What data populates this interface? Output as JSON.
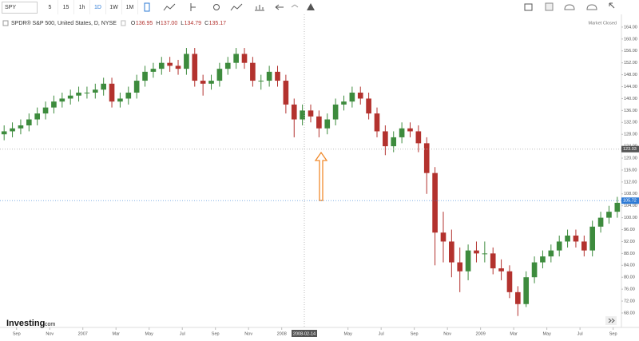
{
  "toolbar": {
    "symbol": "SPY",
    "intervals": [
      "5",
      "15",
      "1h",
      "1D",
      "1W",
      "1M"
    ],
    "active_interval": 3
  },
  "legend": {
    "title": "SPDR® S&P 500, United States, D, NYSE",
    "labels": [
      "O",
      "H",
      "L",
      "C"
    ],
    "values": [
      "136.95",
      "137.00",
      "134.79",
      "135.17"
    ]
  },
  "status": "Market Closed",
  "logo": {
    "name": "Investing",
    "suffix": ".com"
  },
  "chart_data": {
    "type": "candlestick",
    "categories": [
      null,
      null,
      "Sep",
      null,
      null,
      null,
      "Nov",
      null,
      null,
      null,
      "2007",
      null,
      null,
      null,
      "Mar",
      null,
      null,
      null,
      "May",
      null,
      null,
      null,
      "Jul",
      null,
      null,
      null,
      "Sep",
      null,
      null,
      null,
      "Nov",
      null,
      null,
      null,
      "2008",
      null,
      null,
      null,
      null,
      null,
      null,
      null,
      "May",
      null,
      null,
      null,
      "Jul",
      null,
      null,
      null,
      "Sep",
      null,
      null,
      null,
      "Nov",
      null,
      null,
      null,
      "2009",
      null,
      null,
      null,
      "Mar",
      null,
      null,
      null,
      "May",
      null,
      null,
      null,
      "Jul",
      null,
      null,
      null,
      "Sep"
    ],
    "open": [
      128,
      129,
      130,
      131,
      133,
      135,
      137,
      139,
      140,
      141,
      142,
      142,
      143,
      145,
      139,
      140,
      142,
      146,
      149,
      150,
      152,
      151,
      150,
      155,
      146,
      145,
      146,
      150,
      152,
      155,
      152,
      146,
      146,
      149,
      146,
      138,
      133,
      136,
      134,
      130,
      133,
      138,
      139,
      142,
      140,
      135,
      129,
      124,
      127,
      130,
      129,
      125,
      115,
      95,
      92,
      85,
      82,
      89,
      88,
      88,
      83,
      82,
      75,
      71,
      80,
      85,
      87,
      89,
      92,
      94,
      92,
      89,
      97,
      100,
      102
    ],
    "high": [
      131,
      132,
      133,
      135,
      137,
      139,
      141,
      142,
      143,
      144,
      144,
      145,
      147,
      147,
      142,
      144,
      148,
      151,
      152,
      154,
      154,
      153,
      157,
      157,
      148,
      148,
      152,
      154,
      157,
      157,
      154,
      148,
      151,
      151,
      148,
      140,
      138,
      138,
      136,
      135,
      140,
      141,
      144,
      144,
      142,
      137,
      131,
      129,
      132,
      132,
      131,
      127,
      117,
      102,
      96,
      90,
      91,
      92,
      92,
      90,
      86,
      84,
      77,
      82,
      87,
      89,
      91,
      94,
      96,
      96,
      94,
      99,
      102,
      104,
      107
    ],
    "low": [
      126,
      127,
      128,
      129,
      131,
      133,
      135,
      137,
      138,
      139,
      140,
      140,
      141,
      137,
      137,
      138,
      140,
      144,
      147,
      148,
      149,
      148,
      148,
      144,
      141,
      143,
      144,
      148,
      150,
      150,
      144,
      143,
      144,
      144,
      135,
      127,
      131,
      132,
      127,
      128,
      131,
      136,
      137,
      138,
      133,
      127,
      121,
      122,
      125,
      127,
      122,
      108,
      84,
      85,
      80,
      75,
      79,
      85,
      85,
      81,
      79,
      73,
      67,
      70,
      78,
      83,
      85,
      87,
      90,
      90,
      87,
      87,
      95,
      98,
      100
    ],
    "close": [
      129,
      130,
      131,
      133,
      135,
      137,
      139,
      140,
      141,
      142,
      142,
      143,
      145,
      139,
      140,
      142,
      146,
      149,
      150,
      152,
      151,
      150,
      155,
      146,
      145,
      146,
      150,
      152,
      155,
      152,
      146,
      146,
      149,
      146,
      138,
      133,
      136,
      134,
      130,
      133,
      138,
      139,
      142,
      140,
      135,
      129,
      124,
      127,
      130,
      129,
      125,
      115,
      95,
      92,
      85,
      82,
      89,
      88,
      88,
      83,
      82,
      75,
      71,
      80,
      85,
      87,
      89,
      92,
      94,
      92,
      89,
      97,
      100,
      102,
      105
    ],
    "up_color": "#3d8b3d",
    "down_color": "#b3322e",
    "ylim": [
      64.5,
      167.2
    ],
    "yticks": [
      {
        "value": 68,
        "label": "68.00"
      },
      {
        "value": 72,
        "label": "72.00"
      },
      {
        "value": 76,
        "label": "76.00"
      },
      {
        "value": 80,
        "label": "80.00"
      },
      {
        "value": 84,
        "label": "84.00"
      },
      {
        "value": 88,
        "label": "88.00"
      },
      {
        "value": 92,
        "label": "92.00"
      },
      {
        "value": 96,
        "label": "96.00"
      },
      {
        "value": 100,
        "label": "100.00"
      },
      {
        "value": 104,
        "label": "104.00"
      },
      {
        "value": 108,
        "label": "108.00"
      },
      {
        "value": 112,
        "label": "112.00"
      },
      {
        "value": 116,
        "label": "116.00"
      },
      {
        "value": 120,
        "label": "120.00"
      },
      {
        "value": 124,
        "label": "124.00"
      },
      {
        "value": 128,
        "label": "128.00"
      },
      {
        "value": 132,
        "label": "132.00"
      },
      {
        "value": 136,
        "label": "136.00"
      },
      {
        "value": 140,
        "label": "140.00"
      },
      {
        "value": 144,
        "label": "144.00"
      },
      {
        "value": 148,
        "label": "148.00"
      },
      {
        "value": 152,
        "label": "152.00"
      },
      {
        "value": 156,
        "label": "156.00"
      },
      {
        "value": 160,
        "label": "160.00"
      },
      {
        "value": 164,
        "label": "164.00"
      }
    ],
    "last_price": 105.72,
    "last_color": "#2e7bd6",
    "crosshair": {
      "x_label": "2008-02-14",
      "y": 123.03
    }
  }
}
